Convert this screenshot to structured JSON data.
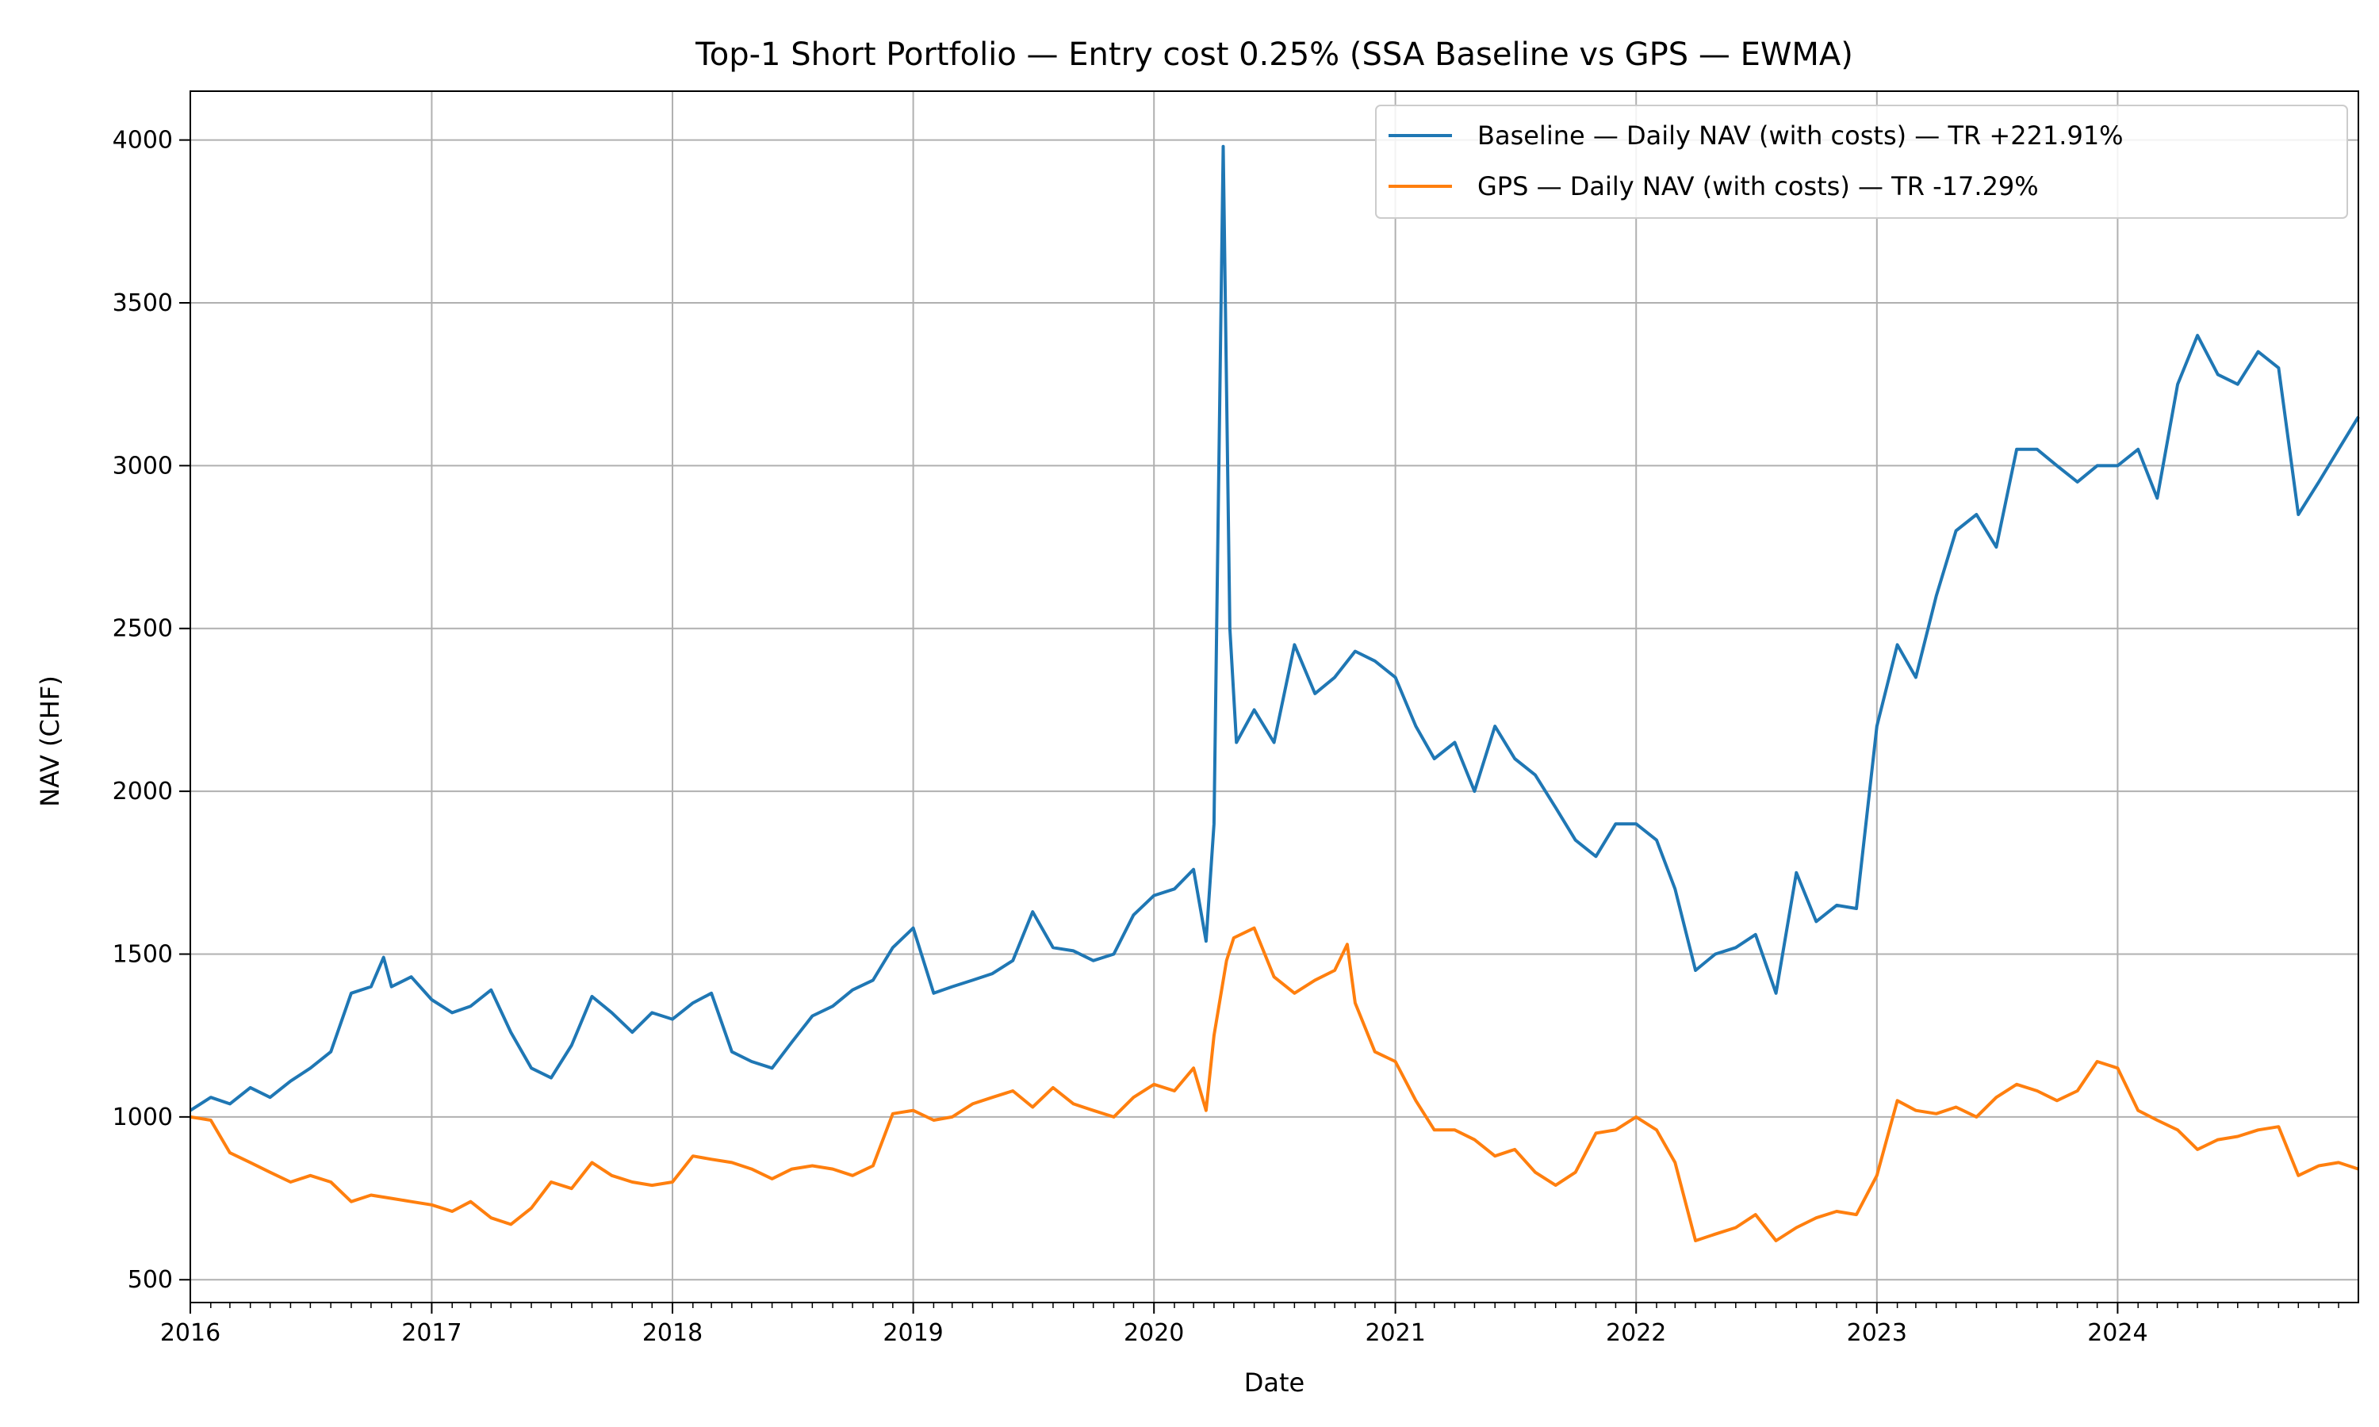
{
  "chart_data": {
    "type": "line",
    "title": "Top-1 Short Portfolio — Entry cost 0.25% (SSA Baseline vs GPS — EWMA)",
    "xlabel": "Date",
    "ylabel": "NAV (CHF)",
    "xlim": [
      "2016-01-01",
      "2024-12-31"
    ],
    "ylim": [
      430,
      4150
    ],
    "x_ticks": [
      "2016",
      "2017",
      "2018",
      "2019",
      "2020",
      "2021",
      "2022",
      "2023",
      "2024"
    ],
    "y_ticks": [
      500,
      1000,
      1500,
      2000,
      2500,
      3000,
      3500,
      4000
    ],
    "grid": true,
    "legend_position": "top-right",
    "series": [
      {
        "name": "Baseline — Daily NAV (with costs) — TR +221.91%",
        "color": "#1f77b4",
        "points": [
          [
            "2016-01-01",
            1020
          ],
          [
            "2016-02-01",
            1060
          ],
          [
            "2016-03-01",
            1040
          ],
          [
            "2016-04-01",
            1090
          ],
          [
            "2016-05-01",
            1060
          ],
          [
            "2016-06-01",
            1110
          ],
          [
            "2016-07-01",
            1150
          ],
          [
            "2016-08-01",
            1200
          ],
          [
            "2016-09-01",
            1380
          ],
          [
            "2016-10-01",
            1400
          ],
          [
            "2016-10-20",
            1490
          ],
          [
            "2016-11-01",
            1400
          ],
          [
            "2016-12-01",
            1430
          ],
          [
            "2017-01-01",
            1360
          ],
          [
            "2017-02-01",
            1320
          ],
          [
            "2017-03-01",
            1340
          ],
          [
            "2017-04-01",
            1390
          ],
          [
            "2017-05-01",
            1260
          ],
          [
            "2017-06-01",
            1150
          ],
          [
            "2017-07-01",
            1120
          ],
          [
            "2017-08-01",
            1220
          ],
          [
            "2017-09-01",
            1370
          ],
          [
            "2017-10-01",
            1320
          ],
          [
            "2017-11-01",
            1260
          ],
          [
            "2017-12-01",
            1320
          ],
          [
            "2018-01-01",
            1300
          ],
          [
            "2018-02-01",
            1350
          ],
          [
            "2018-03-01",
            1380
          ],
          [
            "2018-04-01",
            1200
          ],
          [
            "2018-05-01",
            1170
          ],
          [
            "2018-06-01",
            1150
          ],
          [
            "2018-07-01",
            1230
          ],
          [
            "2018-08-01",
            1310
          ],
          [
            "2018-09-01",
            1340
          ],
          [
            "2018-10-01",
            1390
          ],
          [
            "2018-11-01",
            1420
          ],
          [
            "2018-12-01",
            1520
          ],
          [
            "2019-01-01",
            1580
          ],
          [
            "2019-02-01",
            1380
          ],
          [
            "2019-03-01",
            1400
          ],
          [
            "2019-04-01",
            1420
          ],
          [
            "2019-05-01",
            1440
          ],
          [
            "2019-06-01",
            1480
          ],
          [
            "2019-07-01",
            1630
          ],
          [
            "2019-08-01",
            1520
          ],
          [
            "2019-09-01",
            1510
          ],
          [
            "2019-10-01",
            1480
          ],
          [
            "2019-11-01",
            1500
          ],
          [
            "2019-12-01",
            1620
          ],
          [
            "2020-01-01",
            1680
          ],
          [
            "2020-02-01",
            1700
          ],
          [
            "2020-03-01",
            1760
          ],
          [
            "2020-03-20",
            1540
          ],
          [
            "2020-04-01",
            1900
          ],
          [
            "2020-04-15",
            3980
          ],
          [
            "2020-04-25",
            2500
          ],
          [
            "2020-05-05",
            2150
          ],
          [
            "2020-06-01",
            2250
          ],
          [
            "2020-07-01",
            2150
          ],
          [
            "2020-08-01",
            2450
          ],
          [
            "2020-09-01",
            2300
          ],
          [
            "2020-10-01",
            2350
          ],
          [
            "2020-11-01",
            2430
          ],
          [
            "2020-12-01",
            2400
          ],
          [
            "2021-01-01",
            2350
          ],
          [
            "2021-02-01",
            2200
          ],
          [
            "2021-03-01",
            2100
          ],
          [
            "2021-04-01",
            2150
          ],
          [
            "2021-05-01",
            2000
          ],
          [
            "2021-06-01",
            2200
          ],
          [
            "2021-07-01",
            2100
          ],
          [
            "2021-08-01",
            2050
          ],
          [
            "2021-09-01",
            1950
          ],
          [
            "2021-10-01",
            1850
          ],
          [
            "2021-11-01",
            1800
          ],
          [
            "2021-12-01",
            1900
          ],
          [
            "2022-01-01",
            1900
          ],
          [
            "2022-02-01",
            1850
          ],
          [
            "2022-03-01",
            1700
          ],
          [
            "2022-04-01",
            1450
          ],
          [
            "2022-05-01",
            1500
          ],
          [
            "2022-06-01",
            1520
          ],
          [
            "2022-07-01",
            1560
          ],
          [
            "2022-08-01",
            1380
          ],
          [
            "2022-09-01",
            1750
          ],
          [
            "2022-10-01",
            1600
          ],
          [
            "2022-11-01",
            1650
          ],
          [
            "2022-12-01",
            1640
          ],
          [
            "2023-01-01",
            2200
          ],
          [
            "2023-02-01",
            2450
          ],
          [
            "2023-03-01",
            2350
          ],
          [
            "2023-04-01",
            2600
          ],
          [
            "2023-05-01",
            2800
          ],
          [
            "2023-06-01",
            2850
          ],
          [
            "2023-07-01",
            2750
          ],
          [
            "2023-08-01",
            3050
          ],
          [
            "2023-09-01",
            3050
          ],
          [
            "2023-10-01",
            3000
          ],
          [
            "2023-11-01",
            2950
          ],
          [
            "2023-12-01",
            3000
          ],
          [
            "2024-01-01",
            3000
          ],
          [
            "2024-02-01",
            3050
          ],
          [
            "2024-03-01",
            2900
          ],
          [
            "2024-04-01",
            3250
          ],
          [
            "2024-05-01",
            3400
          ],
          [
            "2024-06-01",
            3280
          ],
          [
            "2024-07-01",
            3250
          ],
          [
            "2024-08-01",
            3350
          ],
          [
            "2024-09-01",
            3300
          ],
          [
            "2024-10-01",
            2850
          ],
          [
            "2024-11-01",
            2950
          ],
          [
            "2024-12-01",
            3050
          ],
          [
            "2024-12-31",
            3150
          ]
        ]
      },
      {
        "name": "GPS — Daily NAV (with costs) — TR -17.29%",
        "color": "#ff7f0e",
        "points": [
          [
            "2016-01-01",
            1000
          ],
          [
            "2016-02-01",
            990
          ],
          [
            "2016-03-01",
            890
          ],
          [
            "2016-04-01",
            860
          ],
          [
            "2016-05-01",
            830
          ],
          [
            "2016-06-01",
            800
          ],
          [
            "2016-07-01",
            820
          ],
          [
            "2016-08-01",
            800
          ],
          [
            "2016-09-01",
            740
          ],
          [
            "2016-10-01",
            760
          ],
          [
            "2016-11-01",
            750
          ],
          [
            "2016-12-01",
            740
          ],
          [
            "2017-01-01",
            730
          ],
          [
            "2017-02-01",
            710
          ],
          [
            "2017-03-01",
            740
          ],
          [
            "2017-04-01",
            690
          ],
          [
            "2017-05-01",
            670
          ],
          [
            "2017-06-01",
            720
          ],
          [
            "2017-07-01",
            800
          ],
          [
            "2017-08-01",
            780
          ],
          [
            "2017-09-01",
            860
          ],
          [
            "2017-10-01",
            820
          ],
          [
            "2017-11-01",
            800
          ],
          [
            "2017-12-01",
            790
          ],
          [
            "2018-01-01",
            800
          ],
          [
            "2018-02-01",
            880
          ],
          [
            "2018-03-01",
            870
          ],
          [
            "2018-04-01",
            860
          ],
          [
            "2018-05-01",
            840
          ],
          [
            "2018-06-01",
            810
          ],
          [
            "2018-07-01",
            840
          ],
          [
            "2018-08-01",
            850
          ],
          [
            "2018-09-01",
            840
          ],
          [
            "2018-10-01",
            820
          ],
          [
            "2018-11-01",
            850
          ],
          [
            "2018-12-01",
            1010
          ],
          [
            "2019-01-01",
            1020
          ],
          [
            "2019-02-01",
            990
          ],
          [
            "2019-03-01",
            1000
          ],
          [
            "2019-04-01",
            1040
          ],
          [
            "2019-05-01",
            1060
          ],
          [
            "2019-06-01",
            1080
          ],
          [
            "2019-07-01",
            1030
          ],
          [
            "2019-08-01",
            1090
          ],
          [
            "2019-09-01",
            1040
          ],
          [
            "2019-10-01",
            1020
          ],
          [
            "2019-11-01",
            1000
          ],
          [
            "2019-12-01",
            1060
          ],
          [
            "2020-01-01",
            1100
          ],
          [
            "2020-02-01",
            1080
          ],
          [
            "2020-03-01",
            1150
          ],
          [
            "2020-03-20",
            1020
          ],
          [
            "2020-04-01",
            1250
          ],
          [
            "2020-04-20",
            1480
          ],
          [
            "2020-05-01",
            1550
          ],
          [
            "2020-06-01",
            1580
          ],
          [
            "2020-07-01",
            1430
          ],
          [
            "2020-08-01",
            1380
          ],
          [
            "2020-09-01",
            1420
          ],
          [
            "2020-10-01",
            1450
          ],
          [
            "2020-10-20",
            1530
          ],
          [
            "2020-11-01",
            1350
          ],
          [
            "2020-12-01",
            1200
          ],
          [
            "2021-01-01",
            1170
          ],
          [
            "2021-02-01",
            1050
          ],
          [
            "2021-03-01",
            960
          ],
          [
            "2021-04-01",
            960
          ],
          [
            "2021-05-01",
            930
          ],
          [
            "2021-06-01",
            880
          ],
          [
            "2021-07-01",
            900
          ],
          [
            "2021-08-01",
            830
          ],
          [
            "2021-09-01",
            790
          ],
          [
            "2021-10-01",
            830
          ],
          [
            "2021-11-01",
            950
          ],
          [
            "2021-12-01",
            960
          ],
          [
            "2022-01-01",
            1000
          ],
          [
            "2022-02-01",
            960
          ],
          [
            "2022-03-01",
            860
          ],
          [
            "2022-04-01",
            620
          ],
          [
            "2022-05-01",
            640
          ],
          [
            "2022-06-01",
            660
          ],
          [
            "2022-07-01",
            700
          ],
          [
            "2022-08-01",
            620
          ],
          [
            "2022-09-01",
            660
          ],
          [
            "2022-10-01",
            690
          ],
          [
            "2022-11-01",
            710
          ],
          [
            "2022-12-01",
            700
          ],
          [
            "2023-01-01",
            820
          ],
          [
            "2023-02-01",
            1050
          ],
          [
            "2023-03-01",
            1020
          ],
          [
            "2023-04-01",
            1010
          ],
          [
            "2023-05-01",
            1030
          ],
          [
            "2023-06-01",
            1000
          ],
          [
            "2023-07-01",
            1060
          ],
          [
            "2023-08-01",
            1100
          ],
          [
            "2023-09-01",
            1080
          ],
          [
            "2023-10-01",
            1050
          ],
          [
            "2023-11-01",
            1080
          ],
          [
            "2023-12-01",
            1170
          ],
          [
            "2024-01-01",
            1150
          ],
          [
            "2024-02-01",
            1020
          ],
          [
            "2024-03-01",
            990
          ],
          [
            "2024-04-01",
            960
          ],
          [
            "2024-05-01",
            900
          ],
          [
            "2024-06-01",
            930
          ],
          [
            "2024-07-01",
            940
          ],
          [
            "2024-08-01",
            960
          ],
          [
            "2024-09-01",
            970
          ],
          [
            "2024-10-01",
            820
          ],
          [
            "2024-11-01",
            850
          ],
          [
            "2024-12-01",
            860
          ],
          [
            "2024-12-31",
            840
          ]
        ]
      }
    ]
  }
}
